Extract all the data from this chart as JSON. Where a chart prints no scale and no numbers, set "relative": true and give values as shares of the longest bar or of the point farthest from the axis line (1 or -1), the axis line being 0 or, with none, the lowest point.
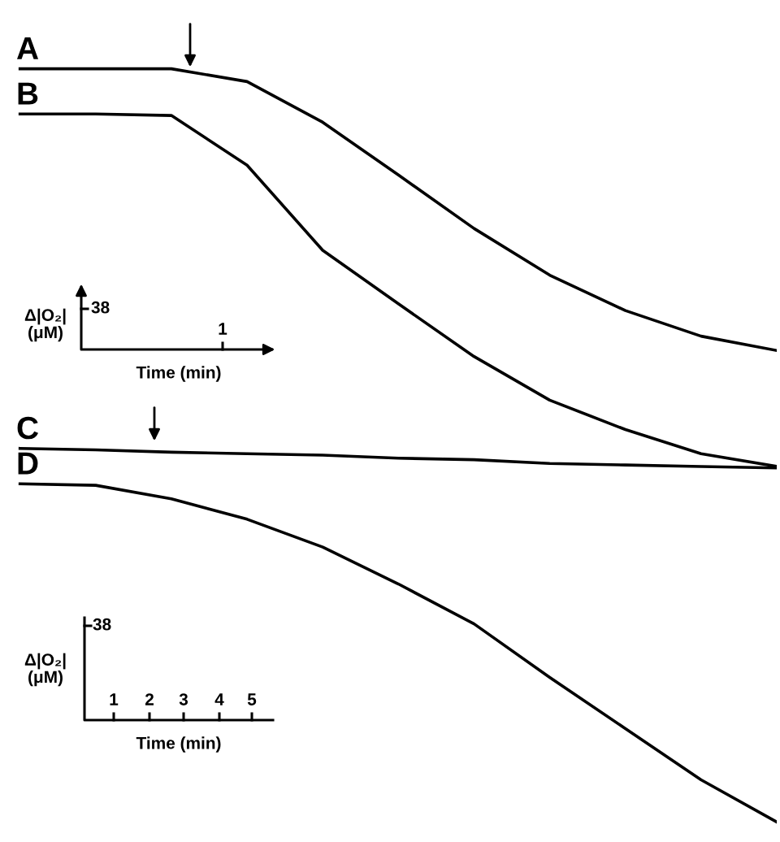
{
  "chart_data": {
    "type": "line",
    "relative": true,
    "categories": [
      null,
      null,
      null,
      null,
      null,
      null,
      null,
      null,
      null,
      null,
      null
    ],
    "marker": "none",
    "line_style": "solid",
    "legend": false,
    "series": [
      {
        "name": "A",
        "color": "#000000",
        "values": [
          1,
          1,
          1,
          0.983,
          0.929,
          0.859,
          0.788,
          0.726,
          0.679,
          0.645,
          0.626
        ]
      },
      {
        "name": "B",
        "color": "#000000",
        "values": [
          0.94,
          0.94,
          0.938,
          0.872,
          0.759,
          0.688,
          0.618,
          0.56,
          0.521,
          0.489,
          0.472
        ]
      },
      {
        "name": "C",
        "color": "#000000",
        "values": [
          0.496,
          0.494,
          0.491,
          0.489,
          0.487,
          0.483,
          0.481,
          0.476,
          0.474,
          0.472,
          0.47
        ]
      },
      {
        "name": "D",
        "color": "#000000",
        "values": [
          0.449,
          0.447,
          0.429,
          0.402,
          0.365,
          0.316,
          0.263,
          0.192,
          0.124,
          0.056,
          0
        ]
      }
    ],
    "annotations": [
      "38",
      "Δ|O₂|\n(μM)",
      "1",
      "Time (min)",
      "38",
      "Δ|O₂|\n(μM)",
      "1",
      "2",
      "3",
      "4",
      "5",
      "Time (min)"
    ]
  }
}
